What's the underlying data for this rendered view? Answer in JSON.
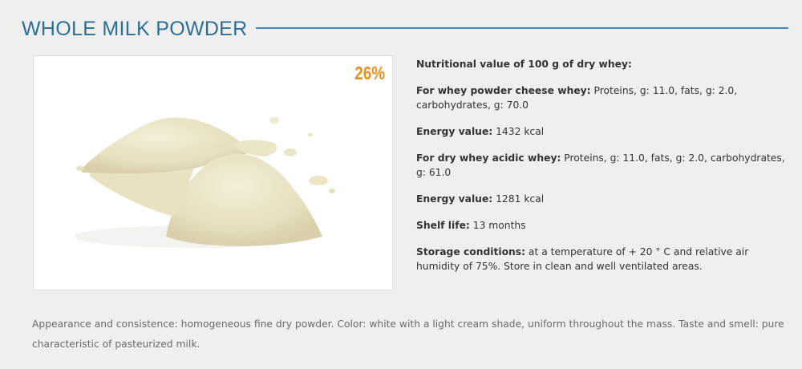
{
  "section": {
    "title": "WHOLE MILK POWDER"
  },
  "product": {
    "badge": "26%",
    "image_alt": "milk powder pile"
  },
  "info": {
    "heading": "Nutritional value of 100 g of dry whey:",
    "items": [
      {
        "label": "For whey powder cheese whey:",
        "value": " Proteins, g: 11.0, fats, g: 2.0, carbohydrates, g: 70.0"
      },
      {
        "label": "Energy value:",
        "value": " 1432 kcal"
      },
      {
        "label": "For dry whey acidic whey:",
        "value": " Proteins, g: 11.0, fats, g: 2.0, carbohydrates, g: 61.0"
      },
      {
        "label": "Energy value:",
        "value": " 1281 kcal"
      },
      {
        "label": "Shelf life:",
        "value": " 13 months"
      },
      {
        "label": "Storage conditions:",
        "value": " at a temperature of + 20 ° C and relative air humidity of 75%. Store in clean and well ventilated areas."
      }
    ]
  },
  "description": "Appearance and consistence: homogeneous fine dry powder. Color: white with a light cream shade, uniform throughout the mass. Taste and smell: pure characteristic of pasteurized milk.",
  "colors": {
    "title": "#2c6f98",
    "rule": "#3b86bb",
    "badge": "#ec8f22",
    "powder": "#ece6c8"
  }
}
